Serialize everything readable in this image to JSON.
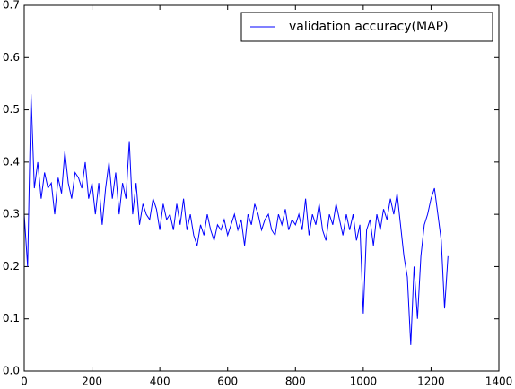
{
  "chart_data": {
    "type": "line",
    "x": [
      0,
      10,
      20,
      30,
      40,
      50,
      60,
      70,
      80,
      90,
      100,
      110,
      120,
      130,
      140,
      150,
      160,
      170,
      180,
      190,
      200,
      210,
      220,
      230,
      240,
      250,
      260,
      270,
      280,
      290,
      300,
      310,
      320,
      330,
      340,
      350,
      360,
      370,
      380,
      390,
      400,
      410,
      420,
      430,
      440,
      450,
      460,
      470,
      480,
      490,
      500,
      510,
      520,
      530,
      540,
      550,
      560,
      570,
      580,
      590,
      600,
      610,
      620,
      630,
      640,
      650,
      660,
      670,
      680,
      690,
      700,
      710,
      720,
      730,
      740,
      750,
      760,
      770,
      780,
      790,
      800,
      810,
      820,
      830,
      840,
      850,
      860,
      870,
      880,
      890,
      900,
      910,
      920,
      930,
      940,
      950,
      960,
      970,
      980,
      990,
      1000,
      1010,
      1020,
      1030,
      1040,
      1050,
      1060,
      1070,
      1080,
      1090,
      1100,
      1110,
      1120,
      1130,
      1140,
      1150,
      1160,
      1170,
      1180,
      1190,
      1200,
      1210,
      1220,
      1230,
      1240,
      1250
    ],
    "series": [
      {
        "name": "validation accuracy(MAP)",
        "color": "#0000ff",
        "values": [
          0.3,
          0.2,
          0.53,
          0.35,
          0.4,
          0.33,
          0.38,
          0.35,
          0.36,
          0.3,
          0.37,
          0.34,
          0.42,
          0.36,
          0.33,
          0.38,
          0.37,
          0.35,
          0.4,
          0.33,
          0.36,
          0.3,
          0.36,
          0.28,
          0.35,
          0.4,
          0.33,
          0.38,
          0.3,
          0.36,
          0.33,
          0.44,
          0.3,
          0.36,
          0.28,
          0.32,
          0.3,
          0.29,
          0.33,
          0.31,
          0.27,
          0.32,
          0.29,
          0.3,
          0.27,
          0.32,
          0.28,
          0.33,
          0.27,
          0.3,
          0.26,
          0.24,
          0.28,
          0.26,
          0.3,
          0.27,
          0.25,
          0.28,
          0.27,
          0.29,
          0.26,
          0.28,
          0.3,
          0.27,
          0.29,
          0.24,
          0.3,
          0.28,
          0.32,
          0.3,
          0.27,
          0.29,
          0.3,
          0.27,
          0.26,
          0.3,
          0.28,
          0.31,
          0.27,
          0.29,
          0.28,
          0.3,
          0.27,
          0.33,
          0.26,
          0.3,
          0.28,
          0.32,
          0.27,
          0.25,
          0.3,
          0.28,
          0.32,
          0.29,
          0.26,
          0.3,
          0.27,
          0.3,
          0.25,
          0.28,
          0.11,
          0.27,
          0.29,
          0.24,
          0.3,
          0.27,
          0.31,
          0.29,
          0.33,
          0.3,
          0.34,
          0.28,
          0.22,
          0.18,
          0.05,
          0.2,
          0.1,
          0.22,
          0.28,
          0.3,
          0.33,
          0.35,
          0.3,
          0.25,
          0.12,
          0.22
        ]
      }
    ],
    "xlim": [
      0,
      1400
    ],
    "xticks": [
      0,
      200,
      400,
      600,
      800,
      1000,
      1200,
      1400
    ],
    "ylim": [
      0,
      0.7
    ],
    "yticks": [
      {
        "value": 0,
        "label": "0.0"
      },
      0.1,
      0.2,
      0.3,
      0.4,
      0.5,
      0.6,
      0.7
    ],
    "legend": "upper right"
  }
}
